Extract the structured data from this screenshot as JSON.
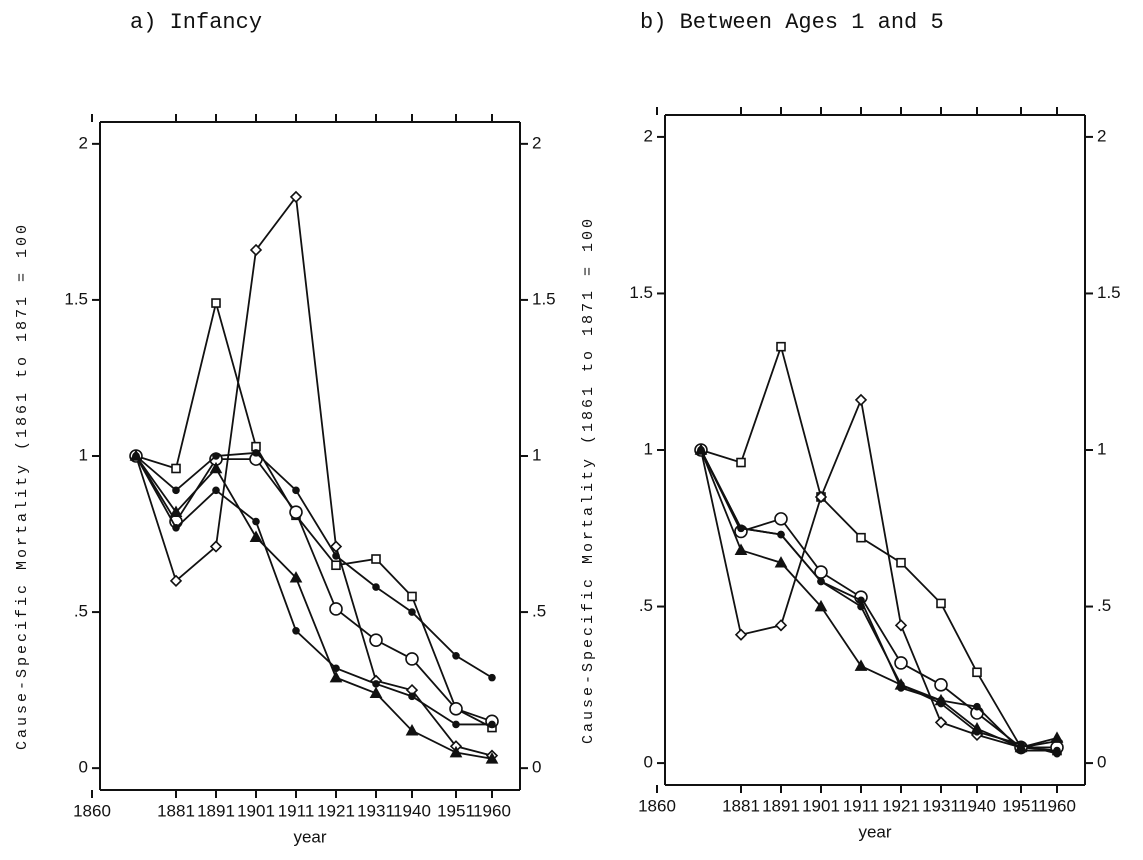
{
  "chart_data": [
    {
      "type": "line",
      "title": "a) Infancy",
      "xlabel": "year",
      "ylabel": "Cause-Specific Mortality (1861 to 1871 = 100",
      "x": [
        1871,
        1881,
        1891,
        1901,
        1911,
        1921,
        1931,
        1940,
        1951,
        1960
      ],
      "xlim": [
        1862,
        1967
      ],
      "xticks": [
        1860,
        1881,
        1891,
        1901,
        1911,
        1921,
        1931,
        1940,
        1951,
        1960
      ],
      "ylim": [
        -0.07,
        2.07
      ],
      "yticks": [
        0,
        {
          "value": 0.5,
          "label": ".5"
        },
        1,
        1.5,
        2
      ],
      "y2lim": [
        -0.07,
        2.07
      ],
      "y2ticks": [
        0,
        {
          "value": 0.5,
          "label": ".5"
        },
        1,
        1.5,
        2
      ],
      "grid": false,
      "series": [
        {
          "color": "#111111",
          "marker": "square",
          "values": [
            1,
            0.96,
            1.49,
            1.03,
            0.81,
            0.65,
            0.67,
            0.55,
            0.19,
            0.13
          ]
        },
        {
          "color": "#111111",
          "marker": "diamond",
          "values": [
            1,
            0.6,
            0.71,
            1.66,
            1.83,
            0.71,
            0.28,
            0.25,
            0.07,
            0.04
          ]
        },
        {
          "color": "#111111",
          "marker": "circle",
          "values": [
            1,
            0.79,
            0.99,
            0.99,
            0.82,
            0.51,
            0.41,
            0.35,
            0.19,
            0.15
          ]
        },
        {
          "color": "#111111",
          "marker": "dot",
          "values": [
            1,
            0.89,
            1.0,
            1.01,
            0.89,
            0.68,
            0.58,
            0.5,
            0.36,
            0.29
          ]
        },
        {
          "color": "#111111",
          "marker": "triangle",
          "values": [
            1,
            0.82,
            0.96,
            0.74,
            0.61,
            0.29,
            0.24,
            0.12,
            0.05,
            0.03
          ]
        },
        {
          "color": "#111111",
          "marker": "dot",
          "values": [
            1,
            0.77,
            0.89,
            0.79,
            0.44,
            0.32,
            0.27,
            0.23,
            0.14,
            0.14
          ]
        }
      ]
    },
    {
      "type": "line",
      "title": "b) Between Ages 1 and 5",
      "xlabel": "year",
      "ylabel": "Cause-Specific Mortality (1861 to 1871 = 100",
      "x": [
        1871,
        1881,
        1891,
        1901,
        1911,
        1921,
        1931,
        1940,
        1951,
        1960
      ],
      "xlim": [
        1862,
        1967
      ],
      "xticks": [
        1860,
        1881,
        1891,
        1901,
        1911,
        1921,
        1931,
        1940,
        1951,
        1960
      ],
      "ylim": [
        -0.07,
        2.07
      ],
      "yticks": [
        0,
        {
          "value": 0.5,
          "label": ".5"
        },
        1,
        1.5,
        2
      ],
      "y2lim": [
        -0.07,
        2.07
      ],
      "y2ticks": [
        0,
        {
          "value": 0.5,
          "label": ".5"
        },
        1,
        1.5,
        2
      ],
      "grid": false,
      "series": [
        {
          "color": "#111111",
          "marker": "square",
          "values": [
            1,
            0.96,
            1.33,
            0.85,
            0.72,
            0.64,
            0.51,
            0.29,
            0.05,
            0.04
          ]
        },
        {
          "color": "#111111",
          "marker": "diamond",
          "values": [
            1,
            0.41,
            0.44,
            0.85,
            1.16,
            0.44,
            0.13,
            0.09,
            0.05,
            0.07
          ]
        },
        {
          "color": "#111111",
          "marker": "circle",
          "values": [
            1,
            0.74,
            0.78,
            0.61,
            0.53,
            0.32,
            0.25,
            0.16,
            0.05,
            0.05
          ]
        },
        {
          "color": "#111111",
          "marker": "dot",
          "values": [
            1,
            0.75,
            0.73,
            0.58,
            0.52,
            0.24,
            0.2,
            0.18,
            0.04,
            0.04
          ]
        },
        {
          "color": "#111111",
          "marker": "triangle",
          "values": [
            1,
            0.68,
            0.64,
            0.5,
            0.31,
            0.25,
            0.2,
            0.11,
            0.05,
            0.08
          ]
        },
        {
          "color": "#111111",
          "marker": "dot",
          "values": [
            1,
            0.75,
            0.73,
            0.58,
            0.5,
            0.25,
            0.19,
            0.1,
            0.06,
            0.03
          ]
        }
      ]
    }
  ]
}
